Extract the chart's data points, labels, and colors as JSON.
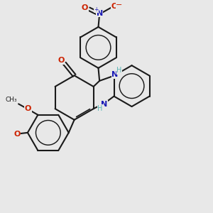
{
  "bg_color": "#e8e8e8",
  "bond_color": "#1a1a1a",
  "lw": 1.5,
  "N_color": "#1a1ab5",
  "O_color": "#cc2200",
  "H_color": "#5ab5b5",
  "figsize": [
    3.0,
    3.0
  ],
  "dpi": 100,
  "xlim": [
    -2.5,
    5.5
  ],
  "ylim": [
    -4.5,
    4.5
  ]
}
